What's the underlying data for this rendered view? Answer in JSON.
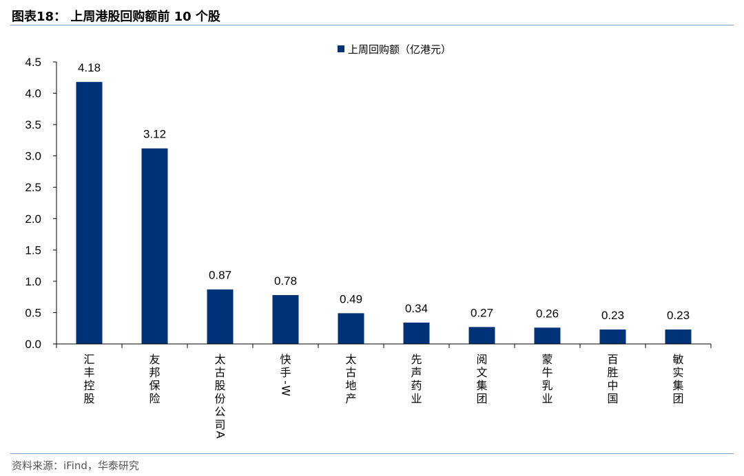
{
  "figure": {
    "title": "图表18： 上周港股回购额前 10 个股",
    "source": "资料来源：iFind，华泰研究"
  },
  "colors": {
    "bar": "#003278",
    "rule": "#7f9fc4"
  },
  "chart_data": {
    "type": "bar",
    "categories": [
      "汇丰控股",
      "友邦保险",
      "太古股份公司A",
      "快手-W",
      "太古地产",
      "先声药业",
      "阅文集团",
      "蒙牛乳业",
      "百胜中国",
      "敏实集团"
    ],
    "series": [
      {
        "name": "上周回购额（亿港元）",
        "values": [
          4.18,
          3.12,
          0.87,
          0.78,
          0.49,
          0.34,
          0.27,
          0.26,
          0.23,
          0.23
        ]
      }
    ],
    "data_labels": [
      "4.18",
      "3.12",
      "0.87",
      "0.78",
      "0.49",
      "0.34",
      "0.27",
      "0.26",
      "0.23",
      "0.23"
    ],
    "ylim": [
      0,
      4.5
    ],
    "yticks": [
      "0.0",
      "0.5",
      "1.0",
      "1.5",
      "2.0",
      "2.5",
      "3.0",
      "3.5",
      "4.0",
      "4.5"
    ],
    "legend_position": "top-right",
    "grid": false
  }
}
